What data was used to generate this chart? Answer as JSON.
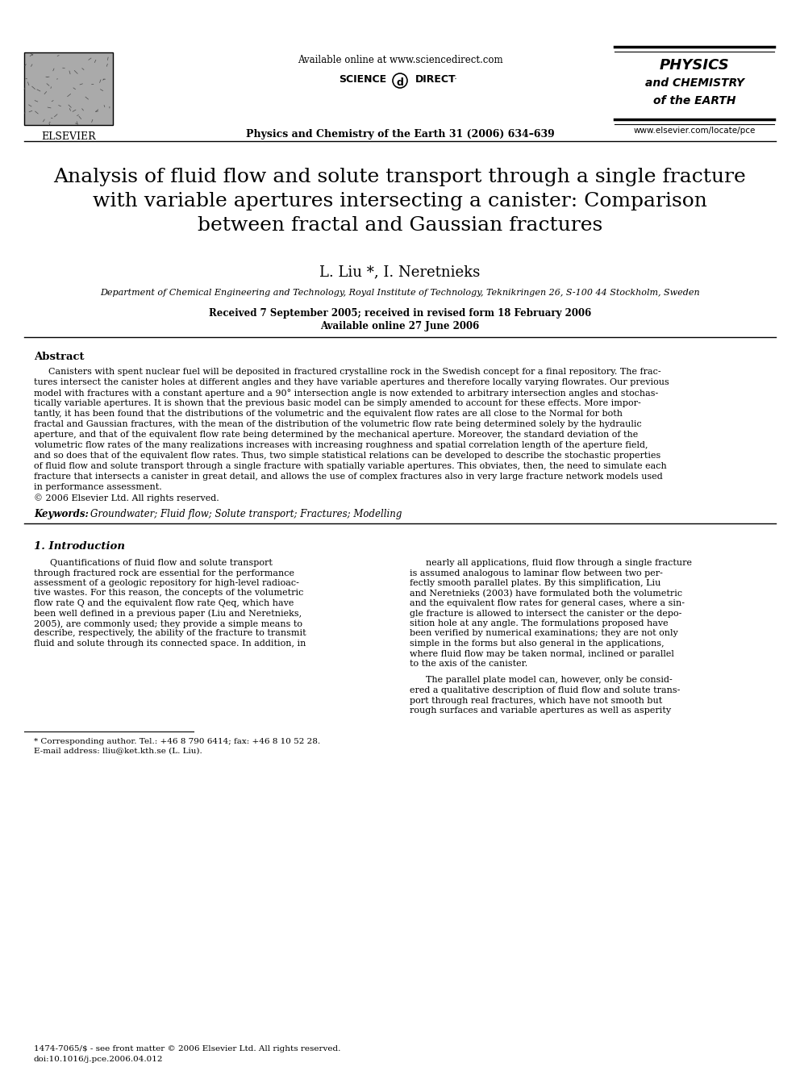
{
  "bg_color": "#ffffff",
  "header": {
    "available_online": "Available online at www.sciencedirect.com",
    "journal_info": "Physics and Chemistry of the Earth 31 (2006) 634–639",
    "elsevier_label": "ELSEVIER",
    "physics_line1": "PHYSICS",
    "physics_line2": "and CHEMISTRY",
    "physics_line3": "of the EARTH",
    "website": "www.elsevier.com/locate/pce"
  },
  "title": "Analysis of fluid flow and solute transport through a single fracture\nwith variable apertures intersecting a canister: Comparison\nbetween fractal and Gaussian fractures",
  "authors": "L. Liu *, I. Neretnieks",
  "affiliation": "Department of Chemical Engineering and Technology, Royal Institute of Technology, Teknikringen 26, S-100 44 Stockholm, Sweden",
  "received": "Received 7 September 2005; received in revised form 18 February 2006",
  "available": "Available online 27 June 2006",
  "abstract_label": "Abstract",
  "abstract_text": "Canisters with spent nuclear fuel will be deposited in fractured crystalline rock in the Swedish concept for a final repository. The frac-\ntures intersect the canister holes at different angles and they have variable apertures and therefore locally varying flowrates. Our previous\nmodel with fractures with a constant aperture and a 90° intersection angle is now extended to arbitrary intersection angles and stochas-\ntically variable apertures. It is shown that the previous basic model can be simply amended to account for these effects. More impor-\ntantly, it has been found that the distributions of the volumetric and the equivalent flow rates are all close to the Normal for both\nfractal and Gaussian fractures, with the mean of the distribution of the volumetric flow rate being determined solely by the hydraulic\naperture, and that of the equivalent flow rate being determined by the mechanical aperture. Moreover, the standard deviation of the\nvolumetric flow rates of the many realizations increases with increasing roughness and spatial correlation length of the aperture field,\nand so does that of the equivalent flow rates. Thus, two simple statistical relations can be developed to describe the stochastic properties\nof fluid flow and solute transport through a single fracture with spatially variable apertures. This obviates, then, the need to simulate each\nfracture that intersects a canister in great detail, and allows the use of complex fractures also in very large fracture network models used\nin performance assessment.\n© 2006 Elsevier Ltd. All rights reserved.",
  "keywords_label": "Keywords:",
  "keywords_text": "Groundwater; Fluid flow; Solute transport; Fractures; Modelling",
  "section1_title": "1. Introduction",
  "section1_col1": "Quantifications of fluid flow and solute transport\nthrough fractured rock are essential for the performance\nassessment of a geologic repository for high-level radioac-\ntive wastes. For this reason, the concepts of the volumetric\nflow rate Q and the equivalent flow rate Qeq, which have\nbeen well defined in a previous paper (Liu and Neretnieks,\n2005), are commonly used; they provide a simple means to\ndescribe, respectively, the ability of the fracture to transmit\nfluid and solute through its connected space. In addition, in",
  "section1_col2": "nearly all applications, fluid flow through a single fracture\nis assumed analogous to laminar flow between two per-\nfectly smooth parallel plates. By this simplification, Liu\nand Neretnieks (2003) have formulated both the volumetric\nand the equivalent flow rates for general cases, where a sin-\ngle fracture is allowed to intersect the canister or the depo-\nsition hole at any angle. The formulations proposed have\nbeen verified by numerical examinations; they are not only\nsimple in the forms but also general in the applications,\nwhere fluid flow may be taken normal, inclined or parallel\nto the axis of the canister.\n\nThe parallel plate model can, however, only be consid-\nered a qualitative description of fluid flow and solute trans-\nport through real fractures, which have not smooth but\nrough surfaces and variable apertures as well as asperity",
  "footnote_star": "* Corresponding author. Tel.: +46 8 790 6414; fax: +46 8 10 52 28.",
  "footnote_email": "E-mail address: lliu@ket.kth.se (L. Liu).",
  "footer_left": "1474-7065/$ - see front matter © 2006 Elsevier Ltd. All rights reserved.",
  "footer_doi": "doi:10.1016/j.pce.2006.04.012"
}
